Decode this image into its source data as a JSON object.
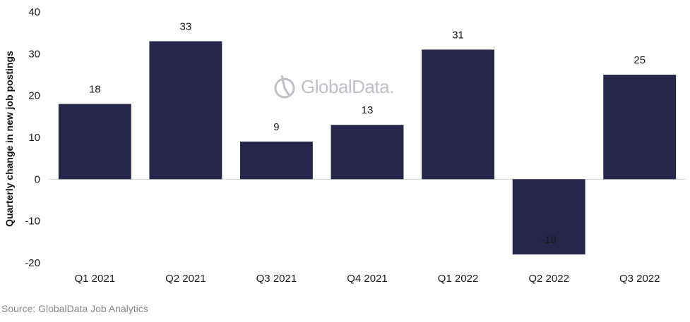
{
  "chart_data": {
    "type": "bar",
    "categories": [
      "Q1 2021",
      "Q2 2021",
      "Q3 2021",
      "Q4 2021",
      "Q1 2022",
      "Q2 2022",
      "Q3 2022"
    ],
    "values": [
      18,
      33,
      9,
      13,
      31,
      -18,
      25
    ],
    "data_labels": [
      "18",
      "33",
      "9",
      "13",
      "31",
      "-18",
      "25"
    ],
    "ylabel": "Quarterly change in new job postings",
    "ylim": [
      -20,
      40
    ],
    "yticks": [
      -20,
      -10,
      0,
      10,
      20,
      30,
      40
    ],
    "grid": false,
    "bar_color": "#25264a"
  },
  "watermark": {
    "text": "GlobalData."
  },
  "source": "Source: GlobalData Job Analytics"
}
